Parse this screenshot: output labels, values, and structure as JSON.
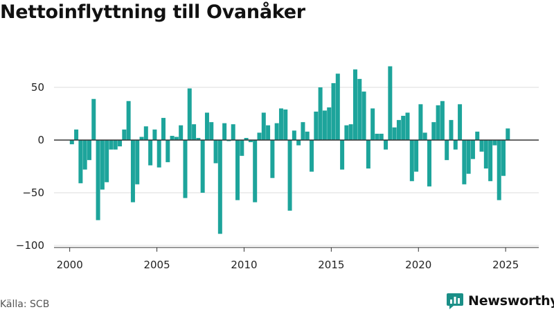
{
  "title": "Nettoinflyttning till Ovanåker",
  "source": "Källa: SCB",
  "brand": {
    "name": "Newsworthy",
    "icon": "newsworthy-logo-icon"
  },
  "colors": {
    "bar": "#1da49b",
    "brand": "#1a8f87",
    "grid": "#dddddd",
    "axis": "#333333"
  },
  "chart_data": {
    "type": "bar",
    "title": "Nettoinflyttning till Ovanåker",
    "xlabel": "",
    "ylabel": "",
    "grid": true,
    "legend": "none",
    "xlim": [
      1999.1,
      2026.9
    ],
    "ylim": [
      -100,
      75
    ],
    "x_ticks": [
      2000,
      2005,
      2010,
      2015,
      2020,
      2025
    ],
    "x_tick_labels": [
      "2000",
      "2005",
      "2010",
      "2015",
      "2020",
      "2025"
    ],
    "y_ticks": [
      -100,
      -50,
      0,
      50
    ],
    "y_tick_labels": [
      "−100",
      "−50",
      "0",
      "50"
    ],
    "start_quarter": "2000K1",
    "frequency": "quarterly",
    "values": [
      -4,
      10,
      -41,
      -28,
      -19,
      39,
      -76,
      -47,
      -40,
      -9,
      -9,
      -6,
      10,
      37,
      -59,
      -42,
      3,
      13,
      -24,
      10,
      -26,
      21,
      -21,
      4,
      3,
      14,
      -55,
      49,
      15,
      2,
      -50,
      26,
      17,
      -22,
      -89,
      16,
      -1,
      15,
      -57,
      -15,
      2,
      -2,
      -59,
      7,
      26,
      14,
      -36,
      16,
      30,
      29,
      -67,
      9,
      -5,
      17,
      8,
      -30,
      27,
      50,
      28,
      31,
      54,
      63,
      -28,
      14,
      15,
      67,
      58,
      46,
      -27,
      30,
      6,
      6,
      -9,
      70,
      12,
      19,
      23,
      26,
      -39,
      -30,
      34,
      7,
      -44,
      17,
      33,
      37,
      -19,
      19,
      -9,
      34,
      -42,
      -32,
      -18,
      8,
      -11,
      -27,
      -39,
      -5,
      -57,
      -34,
      11
    ]
  }
}
